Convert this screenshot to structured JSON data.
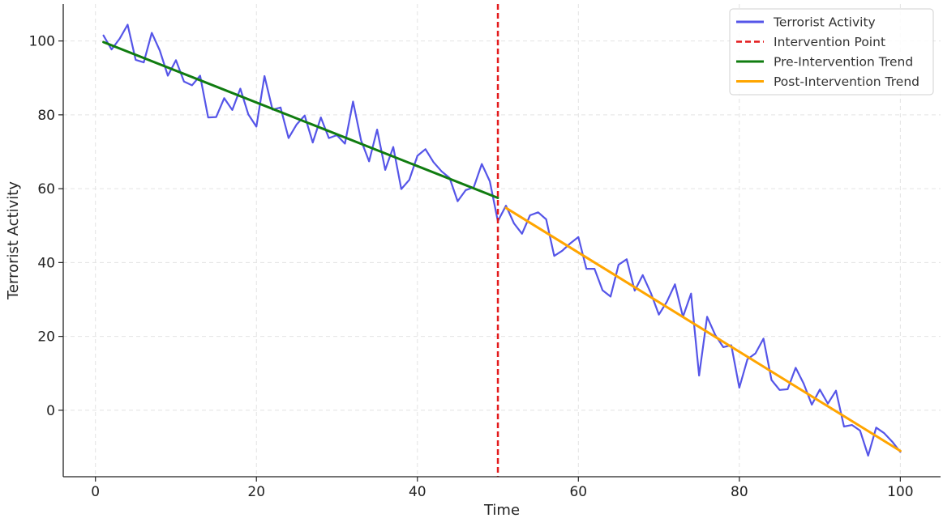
{
  "chart_data": {
    "type": "line",
    "title": "",
    "xlabel": "Time",
    "ylabel": "Terrorist Activity",
    "xlim": [
      -4,
      105
    ],
    "ylim": [
      -18,
      110
    ],
    "xticks": [
      0,
      20,
      40,
      60,
      80,
      100
    ],
    "yticks": [
      0,
      20,
      40,
      60,
      80,
      100
    ],
    "grid": true,
    "legend_position": "top-right",
    "series": [
      {
        "name": "Terrorist Activity",
        "kind": "line",
        "color": "#5555e8",
        "x": [
          1,
          2,
          3,
          4,
          5,
          6,
          7,
          8,
          9,
          10,
          11,
          12,
          13,
          14,
          15,
          16,
          17,
          18,
          19,
          20,
          21,
          22,
          23,
          24,
          25,
          26,
          27,
          28,
          29,
          30,
          31,
          32,
          33,
          34,
          35,
          36,
          37,
          38,
          39,
          40,
          41,
          42,
          43,
          44,
          45,
          46,
          47,
          48,
          49,
          50,
          51,
          52,
          53,
          54,
          55,
          56,
          57,
          58,
          59,
          60,
          61,
          62,
          63,
          64,
          65,
          66,
          67,
          68,
          69,
          70,
          71,
          72,
          73,
          74,
          75,
          76,
          77,
          78,
          79,
          80,
          81,
          82,
          83,
          84,
          85,
          86,
          87,
          88,
          89,
          90,
          91,
          92,
          93,
          94,
          95,
          96,
          97,
          98,
          99,
          100
        ],
        "y": [
          101.5,
          97.7,
          100.6,
          104.4,
          94.9,
          94.2,
          102.2,
          97.4,
          90.6,
          94.8,
          89.0,
          88.0,
          90.6,
          79.3,
          79.4,
          84.5,
          81.3,
          87.1,
          80.1,
          76.8,
          90.5,
          81.4,
          82.0,
          73.7,
          77.4,
          79.8,
          72.5,
          79.3,
          73.7,
          74.5,
          72.2,
          83.6,
          73.1,
          67.4,
          76.0,
          65.1,
          71.3,
          59.9,
          62.4,
          68.9,
          70.7,
          67.2,
          64.7,
          62.9,
          56.6,
          59.6,
          60.4,
          66.7,
          62.0,
          51.2,
          55.4,
          50.6,
          47.8,
          52.8,
          53.6,
          51.7,
          41.8,
          43.2,
          45.2,
          46.9,
          38.3,
          38.3,
          32.5,
          30.8,
          39.4,
          40.9,
          32.4,
          36.6,
          31.8,
          25.9,
          29.4,
          34.1,
          25.3,
          31.6,
          9.4,
          25.3,
          20.4,
          17.1,
          17.6,
          6.1,
          13.8,
          15.4,
          19.4,
          8.2,
          5.5,
          5.7,
          11.5,
          7.2,
          1.5,
          5.6,
          1.8,
          5.3,
          -4.4,
          -4.0,
          -5.5,
          -12.3,
          -4.7,
          -6.2,
          -8.5,
          -11.3
        ]
      },
      {
        "name": "Intervention Point",
        "kind": "vline",
        "color": "#e31a1c",
        "x": 50
      },
      {
        "name": "Pre-Intervention Trend",
        "kind": "line",
        "color": "#107c10",
        "x": [
          1,
          50
        ],
        "y": [
          99.7,
          57.5
        ]
      },
      {
        "name": "Post-Intervention Trend",
        "kind": "line",
        "color": "#ffa500",
        "x": [
          51,
          100
        ],
        "y": [
          54.8,
          -11.0
        ]
      }
    ]
  }
}
